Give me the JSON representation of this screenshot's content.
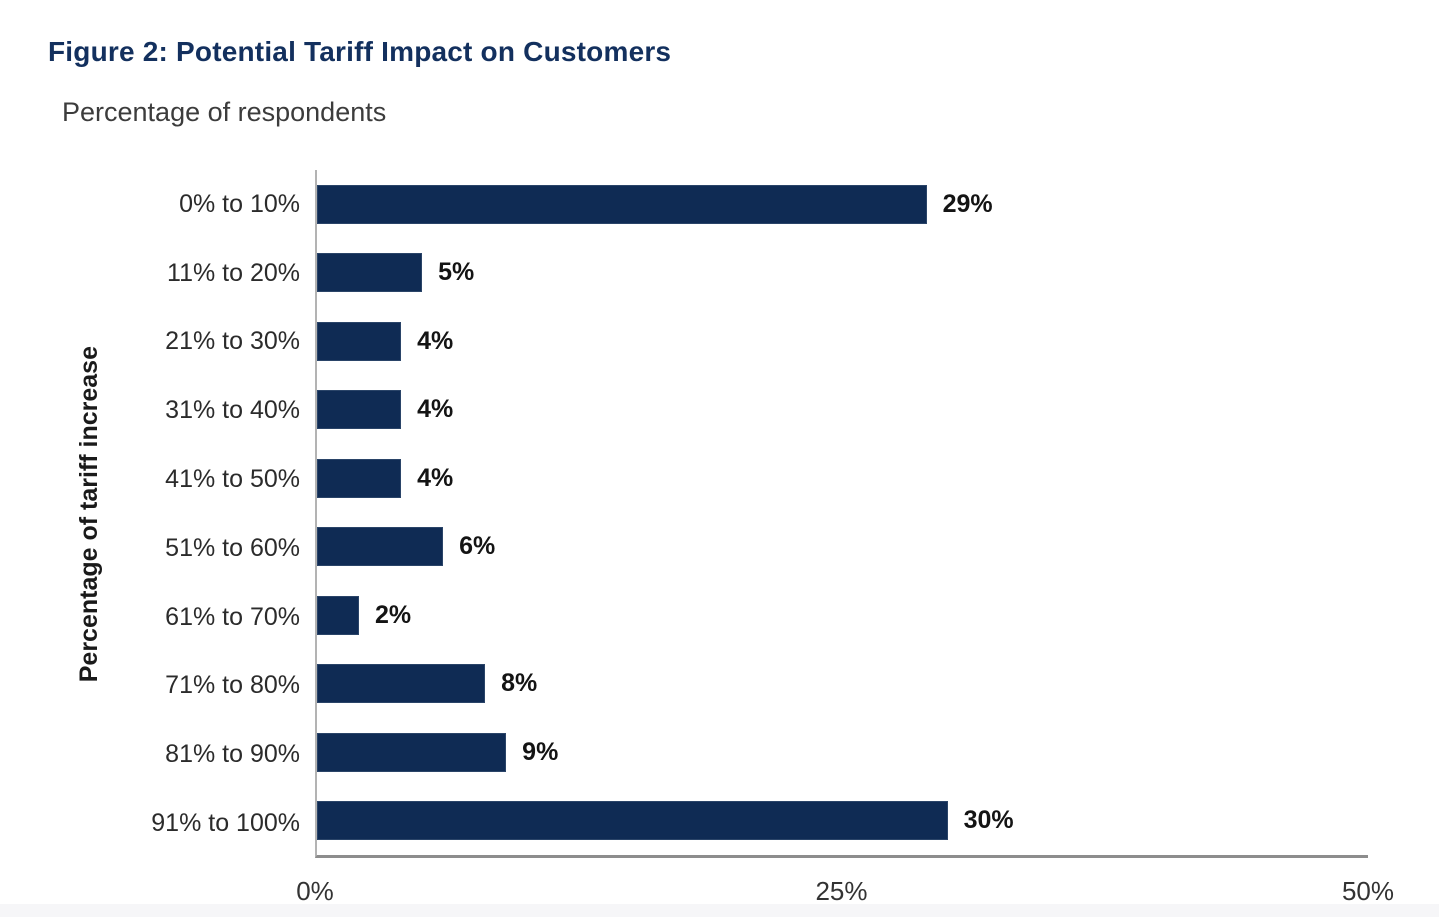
{
  "figure": {
    "title": "Figure 2: Potential Tariff Impact on Customers",
    "subtitle": "Percentage of respondents"
  },
  "colors": {
    "bar": "#0f2b54",
    "title": "#13305e",
    "axis": "#8d8d8d"
  },
  "chart_data": {
    "type": "bar",
    "orientation": "horizontal",
    "title": "Figure 2: Potential Tariff Impact on Customers",
    "subtitle": "Percentage of respondents",
    "ylabel": "Percentage of tariff increase",
    "xlabel": "",
    "categories": [
      "0% to 10%",
      "11% to 20%",
      "21% to 30%",
      "31% to 40%",
      "41% to 50%",
      "51% to 60%",
      "61% to 70%",
      "71% to 80%",
      "81% to 90%",
      "91% to 100%"
    ],
    "values": [
      29,
      5,
      4,
      4,
      4,
      6,
      2,
      8,
      9,
      30
    ],
    "value_labels": [
      "29%",
      "5%",
      "4%",
      "4%",
      "4%",
      "6%",
      "2%",
      "8%",
      "9%",
      "30%"
    ],
    "xlim": [
      0,
      50
    ],
    "x_ticks": [
      "0%",
      "25%",
      "50%"
    ],
    "x_tick_values": [
      0,
      25,
      50
    ],
    "grid": false,
    "legend": false
  }
}
